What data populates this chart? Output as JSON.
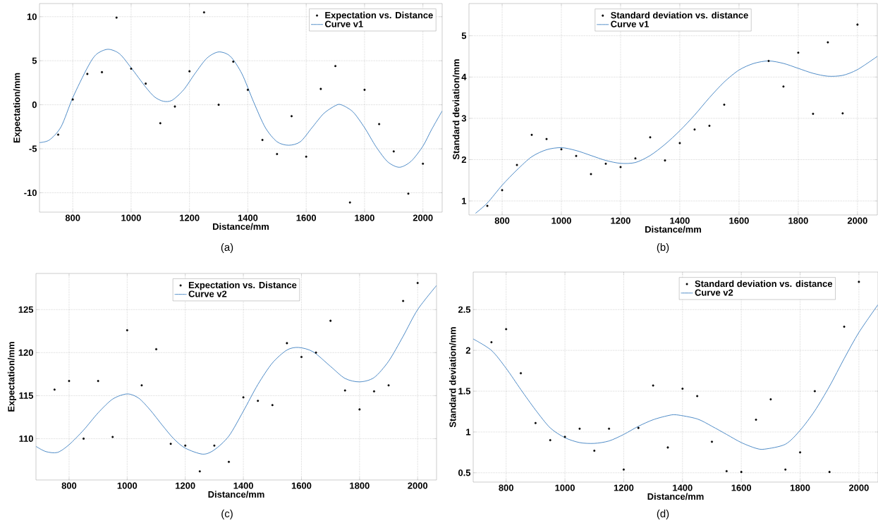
{
  "chart_data": [
    {
      "type": "line",
      "xlabel": "Distance/mm",
      "ylabel": "Expectation/mm",
      "xlim": [
        686,
        2066
      ],
      "ylim": [
        -12.2,
        11.5
      ],
      "xticks": [
        800,
        1000,
        1200,
        1400,
        1600,
        1800,
        2000
      ],
      "yticks": [
        -10,
        -5,
        0,
        5,
        10
      ],
      "grid": true,
      "legend": "top right",
      "annotations": [
        "(a)"
      ],
      "series": [
        {
          "name": "Expectation vs. Distance",
          "type": "scatter",
          "marker": "circle",
          "color": "#000000",
          "x": [
            750,
            800,
            850,
            900,
            950,
            1000,
            1050,
            1100,
            1150,
            1200,
            1250,
            1300,
            1350,
            1400,
            1450,
            1500,
            1550,
            1600,
            1650,
            1700,
            1750,
            1800,
            1850,
            1900,
            1950,
            2000
          ],
          "values": [
            -3.4,
            0.6,
            3.5,
            3.7,
            9.9,
            4.1,
            2.4,
            -2.1,
            -0.2,
            3.8,
            10.5,
            0.0,
            4.9,
            1.7,
            -4.0,
            -5.6,
            -1.3,
            -5.9,
            1.8,
            4.4,
            -11.1,
            1.7,
            -2.2,
            -5.3,
            -10.1,
            -6.7
          ]
        },
        {
          "name": "Curve v1",
          "color": "#3c7fc1",
          "x": [
            686,
            720,
            760,
            800,
            850,
            880,
            920,
            960,
            1000,
            1050,
            1080,
            1110,
            1140,
            1180,
            1220,
            1260,
            1300,
            1340,
            1380,
            1420,
            1460,
            1500,
            1540,
            1580,
            1620,
            1660,
            1700,
            1720,
            1760,
            1800,
            1840,
            1880,
            1920,
            1960,
            2000,
            2030,
            2066
          ],
          "values": [
            -4.3,
            -4.0,
            -2.5,
            0.8,
            4.2,
            5.7,
            6.3,
            5.8,
            4.2,
            2.0,
            0.9,
            0.4,
            0.5,
            1.7,
            3.6,
            5.3,
            6.0,
            5.5,
            3.5,
            0.3,
            -2.6,
            -4.2,
            -4.6,
            -4.2,
            -2.6,
            -1.0,
            -0.1,
            0.0,
            -0.8,
            -2.6,
            -4.8,
            -6.5,
            -7.1,
            -6.4,
            -4.7,
            -2.8,
            -0.7
          ]
        }
      ]
    },
    {
      "type": "line",
      "xlabel": "Distance/mm",
      "ylabel": "Standard deviation/mm",
      "xlim": [
        688,
        2067
      ],
      "ylim": [
        0.66,
        5.78
      ],
      "xticks": [
        800,
        1000,
        1200,
        1400,
        1600,
        1800,
        2000
      ],
      "yticks": [
        1,
        2,
        3,
        4,
        5
      ],
      "grid": true,
      "legend": "top",
      "annotations": [
        "(b)"
      ],
      "series": [
        {
          "name": "Standard deviation vs. distance",
          "type": "scatter",
          "marker": "circle",
          "color": "#000000",
          "x": [
            750,
            800,
            850,
            900,
            950,
            1000,
            1050,
            1100,
            1150,
            1200,
            1250,
            1300,
            1350,
            1400,
            1450,
            1500,
            1550,
            1700,
            1750,
            1800,
            1850,
            1900,
            1950,
            2000
          ],
          "values": [
            0.88,
            1.26,
            1.87,
            2.6,
            2.5,
            2.25,
            2.09,
            1.65,
            1.9,
            1.82,
            2.03,
            2.54,
            1.98,
            2.4,
            2.73,
            2.82,
            3.33,
            4.39,
            3.77,
            4.59,
            3.11,
            4.84,
            3.12,
            5.27
          ]
        },
        {
          "name": "Curve v1",
          "color": "#3c7fc1",
          "x": [
            710,
            750,
            800,
            850,
            900,
            950,
            1000,
            1050,
            1100,
            1150,
            1200,
            1250,
            1300,
            1350,
            1400,
            1450,
            1500,
            1550,
            1600,
            1650,
            1700,
            1750,
            1800,
            1850,
            1900,
            1950,
            2000,
            2067
          ],
          "values": [
            0.7,
            0.95,
            1.38,
            1.75,
            2.07,
            2.24,
            2.29,
            2.22,
            2.1,
            1.98,
            1.91,
            1.93,
            2.1,
            2.37,
            2.7,
            3.08,
            3.5,
            3.88,
            4.17,
            4.33,
            4.39,
            4.33,
            4.21,
            4.09,
            4.02,
            4.04,
            4.18,
            4.5
          ]
        }
      ]
    },
    {
      "type": "line",
      "xlabel": "Distance/mm",
      "ylabel": "Expectation/mm",
      "xlim": [
        686,
        2065
      ],
      "ylim": [
        105.2,
        129.2
      ],
      "xticks": [
        800,
        1000,
        1200,
        1400,
        1600,
        1800,
        2000
      ],
      "yticks": [
        110,
        115,
        120,
        125
      ],
      "grid": true,
      "legend": "top",
      "annotations": [
        "(c)"
      ],
      "series": [
        {
          "name": "Expectation vs. Distance",
          "type": "scatter",
          "marker": "circle",
          "color": "#000000",
          "x": [
            750,
            800,
            850,
            900,
            950,
            1000,
            1050,
            1100,
            1150,
            1200,
            1250,
            1300,
            1350,
            1400,
            1450,
            1500,
            1550,
            1600,
            1650,
            1700,
            1750,
            1800,
            1850,
            1900,
            1950,
            2000
          ],
          "values": [
            115.7,
            116.7,
            110.0,
            116.7,
            110.2,
            122.6,
            116.2,
            120.4,
            109.4,
            109.2,
            106.2,
            109.2,
            107.3,
            114.8,
            114.4,
            113.9,
            121.1,
            119.5,
            120.0,
            123.7,
            115.6,
            113.4,
            115.5,
            116.2,
            126.0,
            128.1
          ]
        },
        {
          "name": "Curve v2",
          "color": "#3c7fc1",
          "x": [
            686,
            720,
            760,
            800,
            850,
            900,
            950,
            1000,
            1040,
            1080,
            1120,
            1160,
            1200,
            1260,
            1300,
            1350,
            1400,
            1450,
            1500,
            1550,
            1590,
            1640,
            1700,
            1750,
            1800,
            1850,
            1900,
            1950,
            2000,
            2065
          ],
          "values": [
            109.1,
            108.5,
            108.4,
            109.3,
            111.0,
            113.0,
            114.6,
            115.2,
            114.7,
            113.3,
            111.6,
            110.0,
            108.9,
            108.2,
            108.7,
            110.3,
            113.2,
            116.3,
            118.8,
            120.3,
            120.6,
            120.1,
            118.4,
            117.0,
            116.6,
            117.1,
            119.0,
            121.9,
            125.0,
            127.8
          ]
        }
      ]
    },
    {
      "type": "line",
      "xlabel": "Distance/mm",
      "ylabel": "Standard deviation/mm",
      "xlim": [
        688,
        2065
      ],
      "ylim": [
        0.386,
        2.96
      ],
      "xticks": [
        800,
        1000,
        1200,
        1400,
        1600,
        1800,
        2000
      ],
      "yticks": [
        {
          "value": 0.5,
          "label": "0.5"
        },
        1,
        1.5,
        2,
        2.5
      ],
      "grid": true,
      "legend": "top right",
      "annotations": [
        "(d)"
      ],
      "series": [
        {
          "name": "Standard deviation vs. distance",
          "type": "scatter",
          "marker": "circle",
          "color": "#000000",
          "x": [
            750,
            800,
            850,
            900,
            950,
            1000,
            1050,
            1100,
            1150,
            1200,
            1250,
            1300,
            1350,
            1400,
            1450,
            1500,
            1550,
            1600,
            1650,
            1700,
            1750,
            1800,
            1850,
            1900,
            1950,
            2000
          ],
          "values": [
            2.1,
            2.26,
            1.72,
            1.11,
            0.9,
            0.94,
            1.04,
            0.77,
            1.04,
            0.54,
            1.05,
            1.57,
            0.81,
            1.53,
            1.44,
            0.88,
            0.52,
            0.51,
            1.15,
            1.4,
            0.54,
            0.75,
            1.5,
            0.51,
            2.29,
            2.84
          ]
        },
        {
          "name": "Curve v2",
          "color": "#3c7fc1",
          "x": [
            688,
            750,
            800,
            850,
            900,
            950,
            1000,
            1050,
            1100,
            1150,
            1200,
            1250,
            1300,
            1350,
            1380,
            1450,
            1500,
            1550,
            1600,
            1650,
            1680,
            1750,
            1800,
            1850,
            1900,
            1950,
            2000,
            2065
          ],
          "values": [
            2.14,
            2.0,
            1.78,
            1.52,
            1.27,
            1.05,
            0.93,
            0.87,
            0.86,
            0.89,
            0.97,
            1.07,
            1.15,
            1.2,
            1.21,
            1.16,
            1.07,
            0.97,
            0.87,
            0.8,
            0.79,
            0.85,
            1.02,
            1.26,
            1.56,
            1.9,
            2.22,
            2.56
          ]
        }
      ]
    }
  ]
}
